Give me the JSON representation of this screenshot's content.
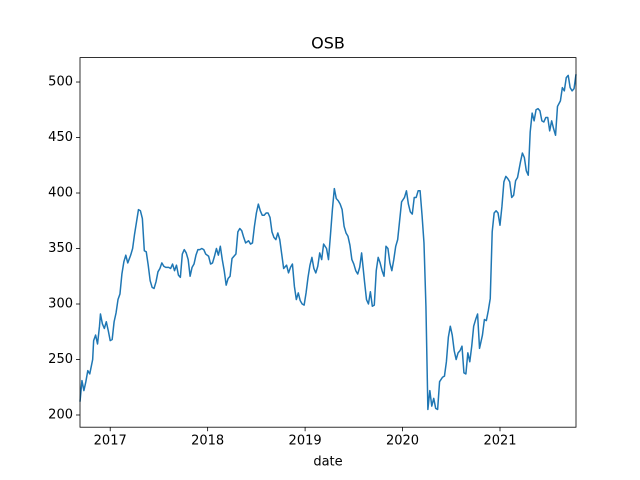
{
  "chart_data": {
    "type": "line",
    "title": "OSB",
    "xlabel": "date",
    "color": "#1f77b4",
    "xlim": [
      2016.69,
      2021.78
    ],
    "xticks": [
      2017,
      2018,
      2019,
      2020,
      2021
    ],
    "ylim": [
      189,
      522
    ],
    "yticks": [
      200,
      250,
      300,
      350,
      400,
      450,
      500
    ],
    "x": [
      2016.69,
      2016.71,
      2016.73,
      2016.75,
      2016.77,
      2016.79,
      2016.82,
      2016.83,
      2016.85,
      2016.87,
      2016.89,
      2016.9,
      2016.92,
      2016.94,
      2016.96,
      2016.98,
      2017.0,
      2017.02,
      2017.04,
      2017.06,
      2017.08,
      2017.1,
      2017.12,
      2017.14,
      2017.16,
      2017.18,
      2017.21,
      2017.23,
      2017.25,
      2017.27,
      2017.29,
      2017.31,
      2017.33,
      2017.35,
      2017.37,
      2017.39,
      2017.41,
      2017.43,
      2017.45,
      2017.47,
      2017.49,
      2017.51,
      2017.53,
      2017.55,
      2017.57,
      2017.6,
      2017.62,
      2017.64,
      2017.66,
      2017.68,
      2017.7,
      2017.72,
      2017.74,
      2017.76,
      2017.78,
      2017.8,
      2017.82,
      2017.84,
      2017.86,
      2017.88,
      2017.9,
      2017.92,
      2017.94,
      2017.96,
      2017.98,
      2018.01,
      2018.03,
      2018.05,
      2018.07,
      2018.09,
      2018.11,
      2018.13,
      2018.15,
      2018.17,
      2018.19,
      2018.21,
      2018.23,
      2018.25,
      2018.27,
      2018.29,
      2018.31,
      2018.33,
      2018.35,
      2018.37,
      2018.39,
      2018.42,
      2018.44,
      2018.46,
      2018.48,
      2018.5,
      2018.52,
      2018.54,
      2018.56,
      2018.58,
      2018.6,
      2018.62,
      2018.64,
      2018.66,
      2018.68,
      2018.7,
      2018.72,
      2018.74,
      2018.76,
      2018.78,
      2018.81,
      2018.83,
      2018.85,
      2018.87,
      2018.89,
      2018.91,
      2018.93,
      2018.95,
      2018.97,
      2018.99,
      2019.01,
      2019.03,
      2019.05,
      2019.07,
      2019.09,
      2019.11,
      2019.13,
      2019.15,
      2019.17,
      2019.19,
      2019.22,
      2019.24,
      2019.26,
      2019.28,
      2019.3,
      2019.32,
      2019.34,
      2019.36,
      2019.38,
      2019.4,
      2019.42,
      2019.44,
      2019.46,
      2019.48,
      2019.5,
      2019.52,
      2019.54,
      2019.56,
      2019.58,
      2019.61,
      2019.63,
      2019.65,
      2019.67,
      2019.69,
      2019.71,
      2019.73,
      2019.75,
      2019.77,
      2019.79,
      2019.81,
      2019.83,
      2019.85,
      2019.87,
      2019.89,
      2019.91,
      2019.93,
      2019.95,
      2019.97,
      2019.99,
      2020.02,
      2020.04,
      2020.06,
      2020.08,
      2020.1,
      2020.12,
      2020.14,
      2020.16,
      2020.18,
      2020.2,
      2020.22,
      2020.24,
      2020.26,
      2020.28,
      2020.3,
      2020.32,
      2020.34,
      2020.36,
      2020.38,
      2020.41,
      2020.43,
      2020.45,
      2020.47,
      2020.49,
      2020.51,
      2020.53,
      2020.55,
      2020.57,
      2020.59,
      2020.61,
      2020.63,
      2020.65,
      2020.67,
      2020.69,
      2020.71,
      2020.73,
      2020.75,
      2020.77,
      2020.79,
      2020.82,
      2020.84,
      2020.86,
      2020.88,
      2020.9,
      2020.92,
      2020.94,
      2020.96,
      2020.98,
      2021.0,
      2021.02,
      2021.04,
      2021.06,
      2021.08,
      2021.1,
      2021.12,
      2021.14,
      2021.16,
      2021.18,
      2021.21,
      2021.23,
      2021.25,
      2021.27,
      2021.29,
      2021.31,
      2021.33,
      2021.35,
      2021.37,
      2021.39,
      2021.41,
      2021.43,
      2021.45,
      2021.47,
      2021.49,
      2021.51,
      2021.53,
      2021.55,
      2021.57,
      2021.59,
      2021.62,
      2021.64,
      2021.66,
      2021.68,
      2021.7,
      2021.72,
      2021.74,
      2021.76,
      2021.78
    ],
    "values": [
      212,
      231,
      222,
      230,
      240,
      237,
      250,
      267,
      272,
      264,
      280,
      291,
      282,
      278,
      284,
      276,
      267,
      268,
      284,
      292,
      304,
      309,
      327,
      338,
      344,
      337,
      344,
      350,
      363,
      374,
      385,
      384,
      377,
      348,
      347,
      335,
      321,
      315,
      314,
      320,
      329,
      332,
      337,
      334,
      333,
      333,
      332,
      336,
      330,
      335,
      326,
      324,
      345,
      349,
      346,
      340,
      325,
      333,
      336,
      344,
      349,
      349,
      350,
      349,
      345,
      343,
      336,
      337,
      343,
      350,
      344,
      352,
      340,
      330,
      317,
      323,
      325,
      341,
      343,
      345,
      365,
      368,
      366,
      360,
      355,
      357,
      354,
      355,
      370,
      382,
      390,
      384,
      380,
      380,
      382,
      382,
      378,
      365,
      360,
      358,
      364,
      358,
      345,
      332,
      335,
      328,
      333,
      336,
      316,
      304,
      310,
      303,
      300,
      299,
      310,
      324,
      335,
      342,
      332,
      328,
      334,
      346,
      340,
      354,
      350,
      340,
      362,
      385,
      404,
      395,
      393,
      390,
      385,
      370,
      364,
      361,
      353,
      340,
      336,
      330,
      327,
      333,
      346,
      320,
      304,
      300,
      311,
      298,
      299,
      330,
      342,
      337,
      330,
      325,
      352,
      350,
      337,
      330,
      340,
      352,
      358,
      375,
      392,
      396,
      402,
      390,
      383,
      381,
      396,
      396,
      402,
      402,
      380,
      355,
      298,
      205,
      222,
      208,
      215,
      206,
      205,
      230,
      234,
      235,
      248,
      270,
      280,
      272,
      258,
      250,
      256,
      258,
      262,
      238,
      237,
      256,
      248,
      262,
      280,
      286,
      291,
      260,
      272,
      286,
      285,
      294,
      305,
      365,
      382,
      384,
      382,
      371,
      388,
      410,
      415,
      413,
      410,
      396,
      398,
      411,
      414,
      428,
      436,
      432,
      420,
      416,
      455,
      472,
      465,
      475,
      476,
      474,
      465,
      464,
      468,
      468,
      456,
      465,
      458,
      452,
      478,
      483,
      495,
      492,
      504,
      506,
      495,
      492,
      494,
      507
    ]
  }
}
